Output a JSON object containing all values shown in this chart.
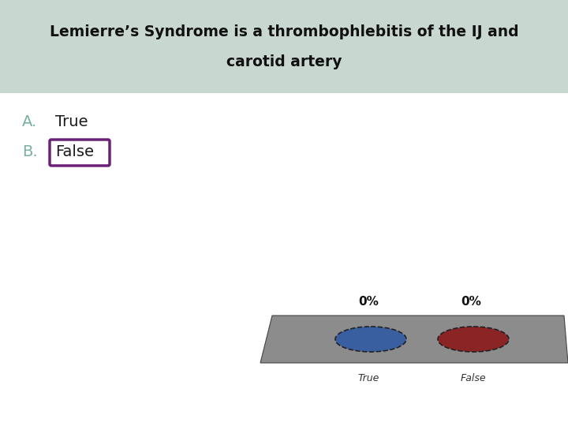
{
  "title_line1": "Lemierre’s Syndrome is a thrombophlebitis of the IJ and",
  "title_line2": "carotid artery",
  "title_bg_color": "#c8d8d0",
  "title_fontsize": 13.5,
  "title_fontweight": "bold",
  "bg_color": "#ffffff",
  "label_A": "A.",
  "label_B": "B.",
  "text_True": "True",
  "text_False": "False",
  "label_color": "#7ab0a0",
  "answer_color": "#1a1a1a",
  "answer_fontsize": 14,
  "label_fontsize": 14,
  "box_color": "#6a2079",
  "bar_color": "#8c8c8c",
  "ellipse_blue_color": "#3a5fa0",
  "ellipse_red_color": "#8b2525",
  "ellipse_edge_color": "#222222",
  "pct_labels": [
    "0%",
    "0%"
  ],
  "axis_labels": [
    "True",
    "False"
  ]
}
